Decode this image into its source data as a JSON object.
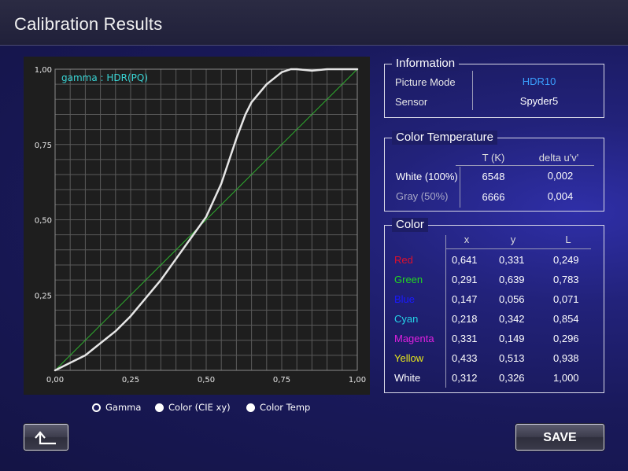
{
  "title": "Calibration Results",
  "chart_data": {
    "type": "line",
    "legend_label": "gamma :  HDR(PQ)",
    "x_ticks": [
      "0,00",
      "0,25",
      "0,50",
      "0,75",
      "1,00"
    ],
    "y_ticks": [
      "0,25",
      "0,50",
      "0,75",
      "1,00"
    ],
    "xlim": [
      0,
      1
    ],
    "ylim": [
      0,
      1
    ],
    "grid": true,
    "series": [
      {
        "color": "#e6e6e6",
        "x": [
          0,
          0.05,
          0.1,
          0.15,
          0.2,
          0.25,
          0.3,
          0.35,
          0.4,
          0.45,
          0.5,
          0.55,
          0.6,
          0.63,
          0.65,
          0.7,
          0.75,
          0.78,
          0.8,
          0.85,
          0.9,
          0.95,
          1.0
        ],
        "y": [
          0,
          0.025,
          0.05,
          0.09,
          0.13,
          0.18,
          0.24,
          0.3,
          0.37,
          0.44,
          0.51,
          0.62,
          0.77,
          0.85,
          0.89,
          0.95,
          0.99,
          1.0,
          1.0,
          0.995,
          1.0,
          1.0,
          1.0
        ]
      },
      {
        "color": "#2fb02f",
        "x": [
          0,
          1
        ],
        "y": [
          0,
          1
        ]
      }
    ]
  },
  "information": {
    "title": "Information",
    "picture_mode_label": "Picture Mode",
    "picture_mode_value": "HDR10",
    "sensor_label": "Sensor",
    "sensor_value": "Spyder5"
  },
  "color_temperature": {
    "title": "Color Temperature",
    "col_t": "T (K)",
    "col_delta": "delta u'v'",
    "rows": [
      {
        "label": "White (100%)",
        "t": "6548",
        "delta": "0,002"
      },
      {
        "label": "Gray (50%)",
        "t": "6666",
        "delta": "0,004"
      }
    ]
  },
  "color": {
    "title": "Color",
    "col_x": "x",
    "col_y": "y",
    "col_l": "L",
    "rows": [
      {
        "label": "Red",
        "color": "#e0102a",
        "x": "0,641",
        "y": "0,331",
        "l": "0,249"
      },
      {
        "label": "Green",
        "color": "#22d522",
        "x": "0,291",
        "y": "0,639",
        "l": "0,783"
      },
      {
        "label": "Blue",
        "color": "#1a1aff",
        "x": "0,147",
        "y": "0,056",
        "l": "0,071"
      },
      {
        "label": "Cyan",
        "color": "#25d3e8",
        "x": "0,218",
        "y": "0,342",
        "l": "0,854"
      },
      {
        "label": "Magenta",
        "color": "#e020e0",
        "x": "0,331",
        "y": "0,149",
        "l": "0,296"
      },
      {
        "label": "Yellow",
        "color": "#e8e81a",
        "x": "0,433",
        "y": "0,513",
        "l": "0,938"
      },
      {
        "label": "White",
        "color": "#ffffff",
        "x": "0,312",
        "y": "0,326",
        "l": "1,000"
      }
    ]
  },
  "radios": [
    {
      "label": "Gamma",
      "selected": true
    },
    {
      "label": "Color (CIE xy)",
      "selected": false
    },
    {
      "label": "Color Temp",
      "selected": false
    }
  ],
  "buttons": {
    "back_icon": "return-arrow-icon",
    "save_label": "SAVE"
  },
  "colors": {
    "picture_mode_value": "#3aa0ff",
    "gray_row_label": "#a8a8c8"
  }
}
